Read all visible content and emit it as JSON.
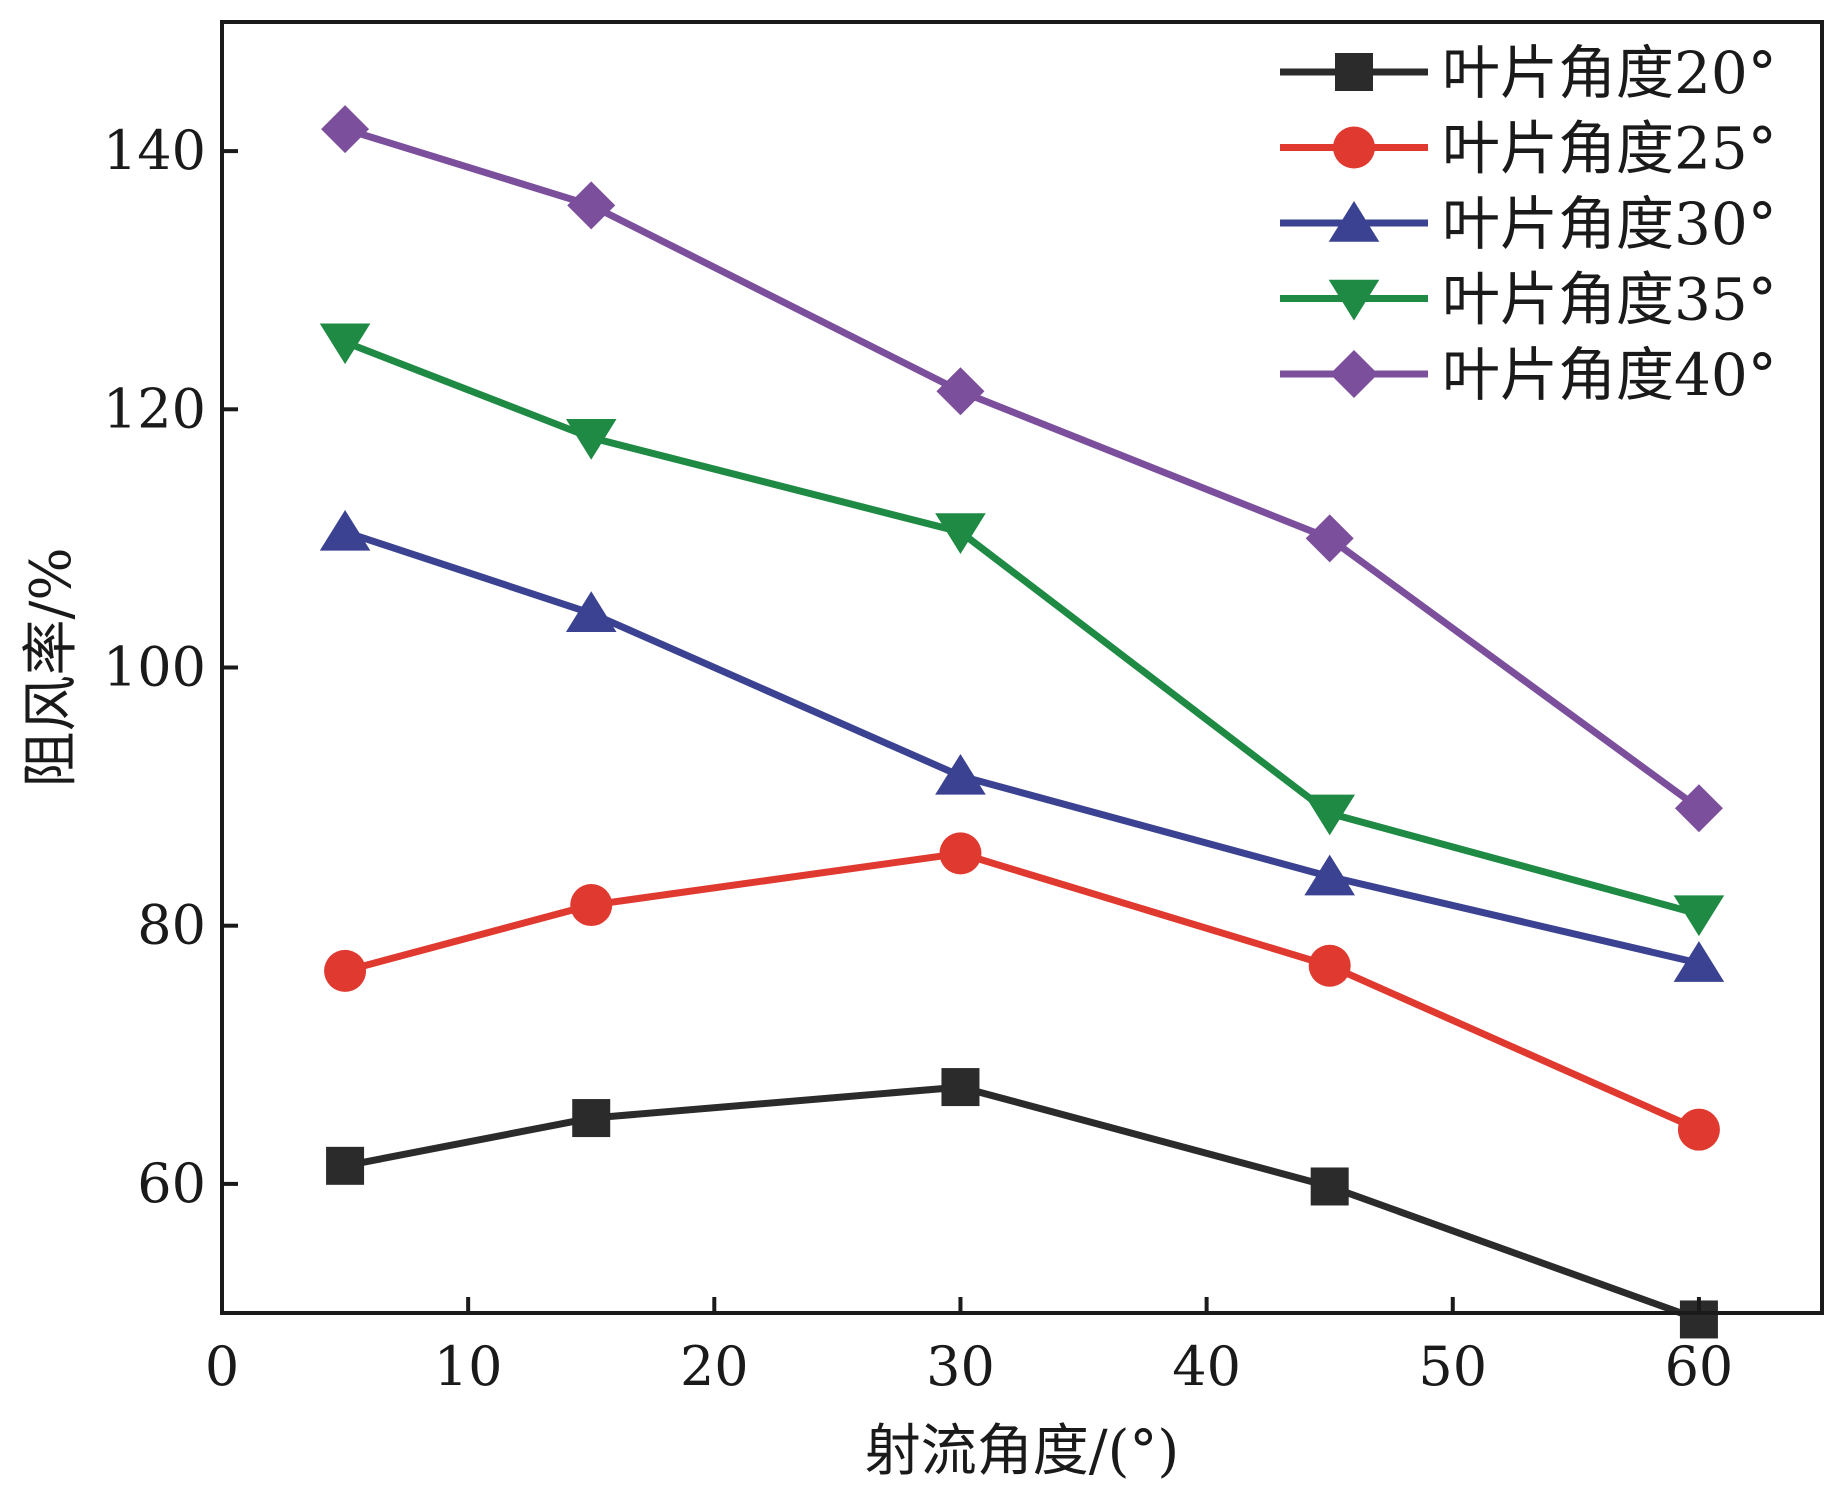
{
  "chart_data": {
    "type": "line",
    "title": "",
    "xlabel": "射流角度/(°)",
    "ylabel": "阻风率/%",
    "xlim": [
      0,
      65
    ],
    "ylim": [
      50,
      150
    ],
    "x_ticks": [
      0,
      10,
      20,
      30,
      40,
      50,
      60
    ],
    "y_ticks": [
      60,
      80,
      100,
      120,
      140
    ],
    "grid": false,
    "legend_position": "top-right",
    "x": [
      5,
      15,
      30,
      45,
      60
    ],
    "series": [
      {
        "name": "叶片角度20°",
        "marker": "square",
        "color": "#2b2b2b",
        "values": [
          61.4,
          65.1,
          67.5,
          59.8,
          49.5
        ]
      },
      {
        "name": "叶片角度25°",
        "marker": "circle",
        "color": "#e03a30",
        "values": [
          76.5,
          81.6,
          85.6,
          76.9,
          64.2
        ]
      },
      {
        "name": "叶片角度30°",
        "marker": "triangle-up",
        "color": "#3a4291",
        "values": [
          110.5,
          104.2,
          91.6,
          83.8,
          77.1
        ]
      },
      {
        "name": "叶片角度35°",
        "marker": "triangle-down",
        "color": "#1e8a43",
        "values": [
          125.2,
          117.8,
          110.5,
          88.7,
          80.9
        ]
      },
      {
        "name": "叶片角度40°",
        "marker": "diamond",
        "color": "#7c4f9c",
        "values": [
          141.7,
          135.8,
          121.4,
          110.0,
          89.1
        ]
      }
    ]
  }
}
